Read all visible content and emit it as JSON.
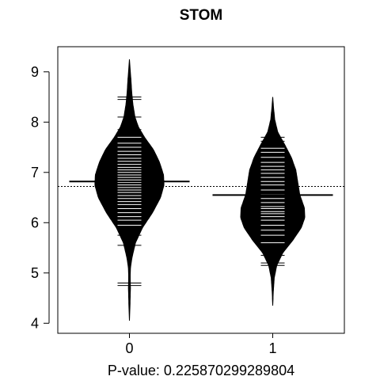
{
  "chart_data": {
    "type": "beanplot",
    "title": "STOM",
    "xlabel": "P-value: 0.225870299289804",
    "ylabel": "",
    "categories": [
      "0",
      "1"
    ],
    "yticks": [
      4,
      5,
      6,
      7,
      8,
      9
    ],
    "ylim": [
      3.8,
      9.5
    ],
    "xlim": [
      -0.5,
      1.5
    ],
    "grid": false,
    "overall_mean": 6.72,
    "groups": [
      {
        "name": "0",
        "mean": 6.82,
        "min": 4.05,
        "max": 9.25,
        "density_profile": [
          [
            4.05,
            0.0
          ],
          [
            4.4,
            0.012
          ],
          [
            4.7,
            0.02
          ],
          [
            4.9,
            0.015
          ],
          [
            5.1,
            0.02
          ],
          [
            5.3,
            0.05
          ],
          [
            5.6,
            0.12
          ],
          [
            5.9,
            0.26
          ],
          [
            6.2,
            0.46
          ],
          [
            6.5,
            0.62
          ],
          [
            6.75,
            0.69
          ],
          [
            6.95,
            0.68
          ],
          [
            7.2,
            0.6
          ],
          [
            7.45,
            0.48
          ],
          [
            7.7,
            0.3
          ],
          [
            7.9,
            0.18
          ],
          [
            8.1,
            0.11
          ],
          [
            8.35,
            0.07
          ],
          [
            8.6,
            0.045
          ],
          [
            8.85,
            0.03
          ],
          [
            9.05,
            0.015
          ],
          [
            9.25,
            0.0
          ]
        ],
        "observations": [
          4.75,
          4.8,
          5.55,
          5.75,
          5.85,
          5.95,
          6.05,
          6.12,
          6.2,
          6.28,
          6.36,
          6.42,
          6.48,
          6.54,
          6.6,
          6.65,
          6.7,
          6.75,
          6.8,
          6.85,
          6.9,
          6.95,
          7.0,
          7.05,
          7.1,
          7.16,
          7.22,
          7.28,
          7.35,
          7.42,
          7.5,
          7.58,
          7.7,
          7.85,
          8.1,
          8.45,
          8.5
        ]
      },
      {
        "name": "1",
        "mean": 6.55,
        "min": 4.35,
        "max": 8.5,
        "density_profile": [
          [
            4.35,
            0.0
          ],
          [
            4.6,
            0.01
          ],
          [
            4.9,
            0.03
          ],
          [
            5.15,
            0.08
          ],
          [
            5.4,
            0.2
          ],
          [
            5.65,
            0.4
          ],
          [
            5.9,
            0.57
          ],
          [
            6.1,
            0.64
          ],
          [
            6.3,
            0.63
          ],
          [
            6.55,
            0.54
          ],
          [
            6.8,
            0.5
          ],
          [
            7.05,
            0.46
          ],
          [
            7.3,
            0.37
          ],
          [
            7.55,
            0.24
          ],
          [
            7.8,
            0.1
          ],
          [
            8.05,
            0.04
          ],
          [
            8.3,
            0.015
          ],
          [
            8.5,
            0.0
          ]
        ],
        "observations": [
          5.15,
          5.2,
          5.35,
          5.45,
          5.6,
          5.75,
          5.85,
          5.95,
          6.05,
          6.12,
          6.18,
          6.22,
          6.28,
          6.32,
          6.4,
          6.48,
          6.56,
          6.65,
          6.75,
          6.82,
          6.9,
          6.98,
          7.05,
          7.12,
          7.2,
          7.3,
          7.4,
          7.48,
          7.55,
          7.62,
          7.7
        ]
      }
    ]
  }
}
